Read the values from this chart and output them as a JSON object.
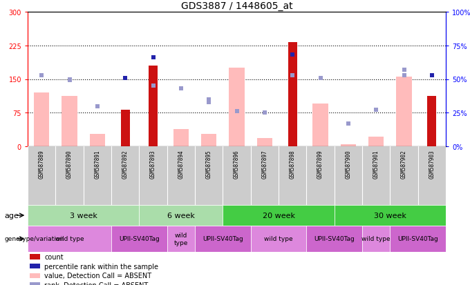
{
  "title": "GDS3887 / 1448605_at",
  "samples": [
    "GSM587889",
    "GSM587890",
    "GSM587891",
    "GSM587892",
    "GSM587893",
    "GSM587894",
    "GSM587895",
    "GSM587896",
    "GSM587897",
    "GSM587898",
    "GSM587899",
    "GSM587900",
    "GSM587901",
    "GSM587902",
    "GSM587903"
  ],
  "count_values": [
    0,
    0,
    0,
    82,
    180,
    0,
    0,
    0,
    0,
    232,
    0,
    0,
    0,
    0,
    112
  ],
  "value_absent": [
    120,
    112,
    28,
    0,
    0,
    38,
    28,
    175,
    18,
    0,
    95,
    5,
    22,
    155,
    0
  ],
  "rank_absent_pct": [
    53,
    50,
    30,
    51,
    45,
    43,
    35,
    26,
    25,
    53,
    51,
    17,
    27,
    53,
    53
  ],
  "percentile_dark_pct": [
    null,
    null,
    null,
    51,
    66,
    null,
    null,
    null,
    null,
    68,
    null,
    null,
    null,
    null,
    53
  ],
  "percentile_light_pct": [
    53,
    49,
    30,
    null,
    null,
    43,
    33,
    26,
    null,
    null,
    51,
    null,
    27,
    57,
    null
  ],
  "ylim_left": [
    0,
    300
  ],
  "ylim_right": [
    0,
    100
  ],
  "yticks_left": [
    0,
    75,
    150,
    225,
    300
  ],
  "yticks_right": [
    0,
    25,
    50,
    75,
    100
  ],
  "ytick_labels_left": [
    "0",
    "75",
    "150",
    "225",
    "300"
  ],
  "ytick_labels_right": [
    "0%",
    "25%",
    "50%",
    "75%",
    "100%"
  ],
  "hlines": [
    75,
    150,
    225
  ],
  "age_groups": [
    {
      "label": "3 week",
      "start": 0,
      "end": 4,
      "color": "#aaddaa"
    },
    {
      "label": "6 week",
      "start": 4,
      "end": 7,
      "color": "#aaddaa"
    },
    {
      "label": "20 week",
      "start": 7,
      "end": 11,
      "color": "#44cc44"
    },
    {
      "label": "30 week",
      "start": 11,
      "end": 15,
      "color": "#44cc44"
    }
  ],
  "genotype_groups": [
    {
      "label": "wild type",
      "start": 0,
      "end": 3,
      "color": "#dd88dd"
    },
    {
      "label": "UPII-SV40Tag",
      "start": 3,
      "end": 5,
      "color": "#cc66cc"
    },
    {
      "label": "wild\ntype",
      "start": 5,
      "end": 6,
      "color": "#dd88dd"
    },
    {
      "label": "UPII-SV40Tag",
      "start": 6,
      "end": 8,
      "color": "#cc66cc"
    },
    {
      "label": "wild type",
      "start": 8,
      "end": 10,
      "color": "#dd88dd"
    },
    {
      "label": "UPII-SV40Tag",
      "start": 10,
      "end": 12,
      "color": "#cc66cc"
    },
    {
      "label": "wild type",
      "start": 12,
      "end": 13,
      "color": "#dd88dd"
    },
    {
      "label": "UPII-SV40Tag",
      "start": 13,
      "end": 15,
      "color": "#cc66cc"
    }
  ],
  "bar_color_red": "#cc1111",
  "bar_color_pink": "#ffbbbb",
  "scatter_dark_blue": "#2222aa",
  "scatter_light_blue": "#9999cc",
  "title_fontsize": 10,
  "tick_fontsize": 7,
  "sample_fontsize": 5.5,
  "legend_fontsize": 7,
  "row_label_fontsize": 8
}
